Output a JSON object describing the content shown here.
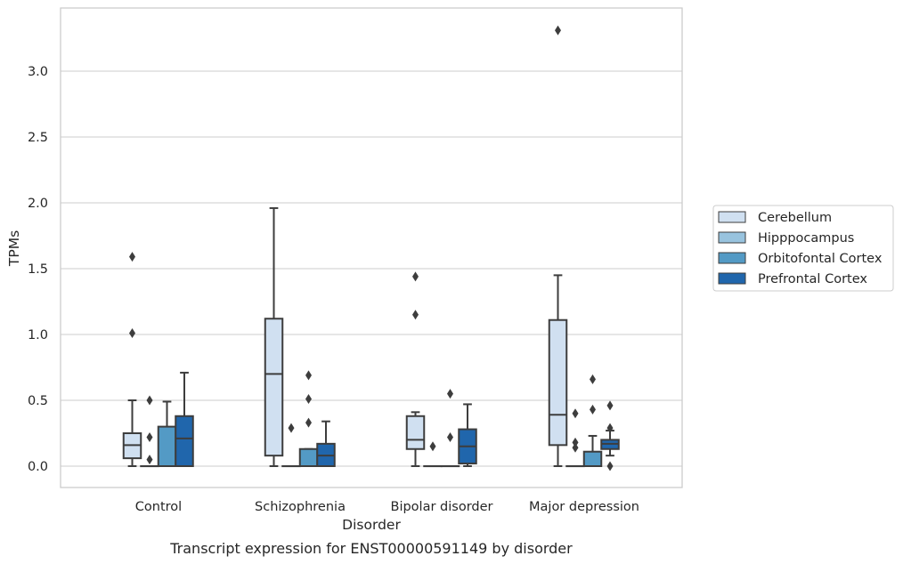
{
  "caption": "Transcript expression for ENST00000591149 by disorder",
  "chart_data": {
    "type": "box",
    "xlabel": "Disorder",
    "ylabel": "TPMs",
    "ylim": [
      -0.16,
      3.47
    ],
    "y_ticks": [
      0.0,
      0.5,
      1.0,
      1.5,
      2.0,
      2.5,
      3.0
    ],
    "y_tick_labels": [
      "0.0",
      "0.5",
      "1.0",
      "1.5",
      "2.0",
      "2.5",
      "3.0"
    ],
    "grid": "horizontal",
    "legend_position": "right",
    "categories": [
      "Control",
      "Schizophrenia",
      "Bipolar disorder",
      "Major depression"
    ],
    "series": [
      {
        "name": "Cerebellum",
        "color": "#d0e0f1",
        "boxes": [
          {
            "whislo": 0.0,
            "q1": 0.06,
            "med": 0.16,
            "q3": 0.25,
            "whishi": 0.5,
            "fliers": [
              1.01,
              1.59
            ]
          },
          {
            "whislo": 0.0,
            "q1": 0.08,
            "med": 0.7,
            "q3": 1.12,
            "whishi": 1.96,
            "fliers": []
          },
          {
            "whislo": 0.0,
            "q1": 0.13,
            "med": 0.2,
            "q3": 0.38,
            "whishi": 0.41,
            "fliers": [
              1.15,
              1.44
            ]
          },
          {
            "whislo": 0.0,
            "q1": 0.16,
            "med": 0.39,
            "q3": 1.11,
            "whishi": 1.45,
            "fliers": [
              3.31
            ]
          }
        ]
      },
      {
        "name": "Hipppocampus",
        "color": "#98c3de",
        "boxes": [
          {
            "whislo": 0.0,
            "q1": 0.0,
            "med": 0.0,
            "q3": 0.0,
            "whishi": 0.0,
            "fliers": [
              0.05,
              0.22,
              0.5
            ]
          },
          {
            "whislo": 0.0,
            "q1": 0.0,
            "med": 0.0,
            "q3": 0.0,
            "whishi": 0.0,
            "fliers": [
              0.29
            ]
          },
          {
            "whislo": 0.0,
            "q1": 0.0,
            "med": 0.0,
            "q3": 0.0,
            "whishi": 0.0,
            "fliers": [
              0.15
            ]
          },
          {
            "whislo": 0.0,
            "q1": 0.0,
            "med": 0.0,
            "q3": 0.0,
            "whishi": 0.0,
            "fliers": [
              0.14,
              0.18,
              0.4
            ]
          }
        ]
      },
      {
        "name": "Orbitofontal Cortex",
        "color": "#539ac5",
        "boxes": [
          {
            "whislo": 0.0,
            "q1": 0.0,
            "med": 0.0,
            "q3": 0.3,
            "whishi": 0.49,
            "fliers": []
          },
          {
            "whislo": 0.0,
            "q1": 0.0,
            "med": 0.0,
            "q3": 0.13,
            "whishi": 0.13,
            "fliers": [
              0.33,
              0.51,
              0.69
            ]
          },
          {
            "whislo": 0.0,
            "q1": 0.0,
            "med": 0.0,
            "q3": 0.0,
            "whishi": 0.0,
            "fliers": [
              0.22,
              0.55
            ]
          },
          {
            "whislo": 0.0,
            "q1": 0.0,
            "med": 0.0,
            "q3": 0.11,
            "whishi": 0.23,
            "fliers": [
              0.43,
              0.66
            ]
          }
        ]
      },
      {
        "name": "Prefrontal Cortex",
        "color": "#2066ac",
        "boxes": [
          {
            "whislo": 0.0,
            "q1": 0.0,
            "med": 0.21,
            "q3": 0.38,
            "whishi": 0.71,
            "fliers": []
          },
          {
            "whislo": 0.0,
            "q1": 0.0,
            "med": 0.08,
            "q3": 0.17,
            "whishi": 0.34,
            "fliers": []
          },
          {
            "whislo": 0.0,
            "q1": 0.02,
            "med": 0.15,
            "q3": 0.28,
            "whishi": 0.47,
            "fliers": []
          },
          {
            "whislo": 0.08,
            "q1": 0.13,
            "med": 0.17,
            "q3": 0.2,
            "whishi": 0.27,
            "fliers": [
              0.0,
              0.29,
              0.46
            ]
          }
        ]
      }
    ]
  }
}
